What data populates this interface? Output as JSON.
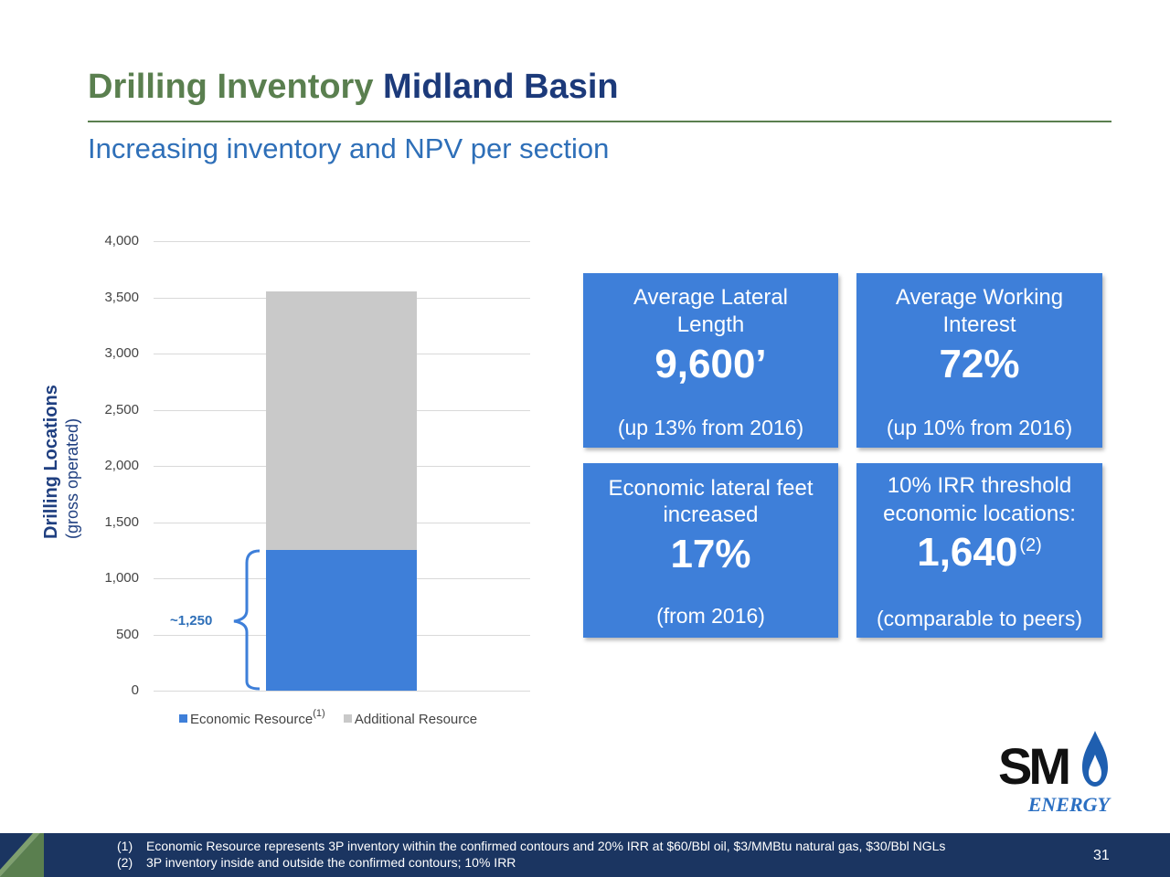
{
  "header": {
    "title_part1": "Drilling Inventory",
    "title_part2": "Midland Basin",
    "subtitle": "Increasing inventory and NPV per section"
  },
  "chart_data": {
    "type": "bar",
    "stacked": true,
    "categories": [
      ""
    ],
    "series": [
      {
        "name": "Economic Resource",
        "footnote_marker": "(1)",
        "values": [
          1250
        ],
        "color": "#3e7fd9"
      },
      {
        "name": "Additional Resource",
        "values": [
          2300
        ],
        "color": "#c9c9c9"
      }
    ],
    "ylabel_line1": "Drilling Locations",
    "ylabel_line2": "(gross operated)",
    "ylim": [
      0,
      4000
    ],
    "yticks": [
      0,
      500,
      1000,
      1500,
      2000,
      2500,
      3000,
      3500,
      4000
    ],
    "ytick_labels": [
      "0",
      "500",
      "1,000",
      "1,500",
      "2,000",
      "2,500",
      "3,000",
      "3,500",
      "4,000"
    ],
    "annotation": "~1,250",
    "legend_position": "bottom",
    "grid": true
  },
  "stats": [
    {
      "head_line1": "Average Lateral",
      "head_line2": "Length",
      "value": "9,600’",
      "value_sup": "",
      "foot": "(up 13% from 2016)"
    },
    {
      "head_line1": "Average Working",
      "head_line2": "Interest",
      "value": "72%",
      "value_sup": "",
      "foot": "(up 10% from 2016)"
    },
    {
      "head_line1": "Economic lateral feet",
      "head_line2": "increased",
      "value": "17%",
      "value_sup": "",
      "foot": "(from 2016)"
    },
    {
      "head_line1": "10% IRR threshold",
      "head_line2": "economic locations:",
      "value": "1,640",
      "value_sup": "(2)",
      "foot": "(comparable to peers)"
    }
  ],
  "logo": {
    "line1": "SM",
    "line2": "ENERGY"
  },
  "footnotes": [
    {
      "num": "(1)",
      "text": "Economic Resource represents 3P inventory within the confirmed contours and 20% IRR at $60/Bbl oil, $3/MMBtu natural gas, $30/Bbl NGLs"
    },
    {
      "num": "(2)",
      "text": "3P inventory inside and outside the confirmed contours; 10% IRR"
    }
  ],
  "page_number": "31",
  "colors": {
    "green": "#5a7f4f",
    "navy": "#1c3a7a",
    "blue": "#3e7fd9",
    "gray": "#c9c9c9",
    "footer": "#1b3561"
  }
}
